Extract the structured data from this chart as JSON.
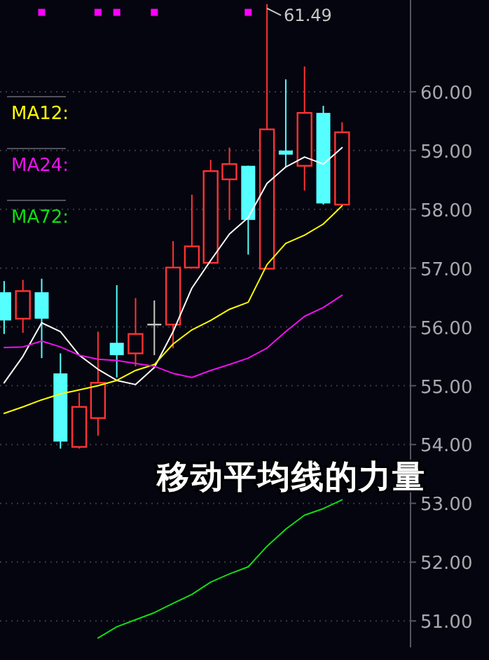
{
  "chart_data": {
    "type": "candlestick",
    "title": "移动平均线的力量",
    "categories": [
      null,
      null,
      null,
      null,
      null,
      null,
      null,
      null,
      null,
      null,
      null,
      null,
      null,
      null,
      null,
      null,
      null,
      null,
      null
    ],
    "ohlc": [
      [
        56.59,
        56.78,
        55.88,
        56.11
      ],
      [
        56.14,
        56.8,
        55.9,
        56.61
      ],
      [
        56.59,
        56.82,
        55.47,
        56.14
      ],
      [
        55.21,
        55.55,
        53.93,
        54.05
      ],
      [
        53.96,
        54.88,
        53.93,
        54.64
      ],
      [
        54.45,
        55.92,
        54.15,
        55.05
      ],
      [
        55.73,
        56.71,
        55.14,
        55.52
      ],
      [
        55.55,
        56.49,
        55.33,
        55.88
      ],
      [
        56.04,
        56.45,
        55.52,
        56.04
      ],
      [
        56.04,
        57.46,
        55.64,
        57.01
      ],
      [
        57.01,
        58.25,
        57.01,
        57.37
      ],
      [
        57.09,
        58.84,
        57.09,
        58.65
      ],
      [
        58.51,
        59.05,
        57.82,
        58.77
      ],
      [
        58.74,
        58.74,
        57.23,
        57.82
      ],
      [
        56.99,
        61.49,
        56.99,
        59.36
      ],
      [
        59.0,
        60.21,
        58.72,
        58.93
      ],
      [
        58.74,
        60.43,
        58.32,
        59.64
      ],
      [
        59.64,
        59.76,
        58.08,
        58.1
      ],
      [
        58.08,
        59.48,
        58.08,
        59.31
      ]
    ],
    "colors": [
      "#55ffff",
      "#ff3333",
      "#55ffff",
      "#55ffff",
      "#ff3333",
      "#ff3333",
      "#55ffff",
      "#ff3333",
      "#c8c8c8",
      "#ff3333",
      "#ff3333",
      "#ff3333",
      "#ff3333",
      "#55ffff",
      "#ff3333",
      "#55ffff",
      "#ff3333",
      "#55ffff",
      "#ff3333"
    ],
    "series": [
      {
        "type": "line",
        "color": "#ffffff",
        "values": [
          55.05,
          55.5,
          56.07,
          55.92,
          55.52,
          55.28,
          55.09,
          55.02,
          55.31,
          55.92,
          56.66,
          57.13,
          57.58,
          57.86,
          58.44,
          58.72,
          58.89,
          58.77,
          59.05
        ]
      },
      {
        "type": "line",
        "name": "MA12:",
        "color": "#ffff00",
        "values": [
          54.53,
          54.64,
          54.76,
          54.86,
          54.93,
          55.0,
          55.09,
          55.26,
          55.36,
          55.71,
          55.95,
          56.11,
          56.3,
          56.42,
          57.06,
          57.42,
          57.56,
          57.75,
          58.06
        ]
      },
      {
        "type": "line",
        "name": "MA24:",
        "color": "#ee11ee",
        "values": [
          55.65,
          55.66,
          55.76,
          55.66,
          55.52,
          55.45,
          55.43,
          55.38,
          55.33,
          55.21,
          55.14,
          55.26,
          55.36,
          55.47,
          55.64,
          55.92,
          56.18,
          56.33,
          56.54
        ]
      },
      {
        "type": "line",
        "name": "MA72:",
        "color": "#11dd11",
        "values": [
          null,
          null,
          null,
          null,
          null,
          50.71,
          50.9,
          51.02,
          51.14,
          51.3,
          51.45,
          51.66,
          51.8,
          51.92,
          52.27,
          52.56,
          52.8,
          52.91,
          53.06
        ]
      },
      {
        "type": "scatter",
        "marker": "square",
        "color": "#ff00ff",
        "values": [
          null,
          null,
          61.35,
          null,
          null,
          61.35,
          61.35,
          null,
          61.35,
          null,
          null,
          null,
          null,
          61.35,
          null,
          null,
          null,
          null,
          null
        ]
      }
    ],
    "ylim": [
      50.55,
      61.56
    ],
    "yticks": [
      {
        "value": 51,
        "label": "51.00"
      },
      {
        "value": 52,
        "label": "52.00"
      },
      {
        "value": 53,
        "label": "53.00"
      },
      {
        "value": 54,
        "label": "54.00"
      },
      {
        "value": 55,
        "label": "55.00"
      },
      {
        "value": 56,
        "label": "56.00"
      },
      {
        "value": 57,
        "label": "57.00"
      },
      {
        "value": 58,
        "label": "58.00"
      },
      {
        "value": 59,
        "label": "59.00"
      },
      {
        "value": 60,
        "label": "60.00"
      }
    ],
    "grid": "y",
    "legend": "top left",
    "annotations": [
      "61.49"
    ]
  }
}
